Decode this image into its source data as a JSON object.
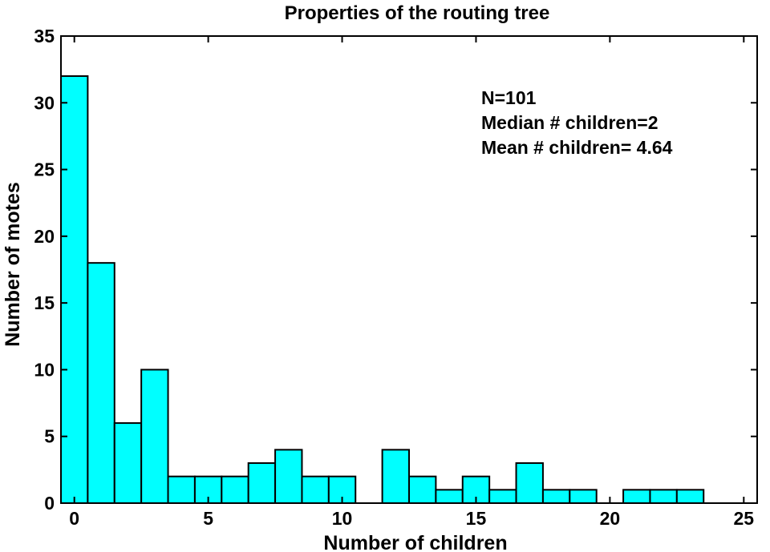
{
  "chart_data": {
    "type": "bar",
    "title": "Properties of the routing tree",
    "xlabel": "Number of children",
    "ylabel": "Number of motes",
    "xlim": [
      -0.5,
      25.5
    ],
    "ylim": [
      0,
      35
    ],
    "xticks": [
      0,
      5,
      10,
      15,
      20,
      25
    ],
    "yticks": [
      0,
      5,
      10,
      15,
      20,
      25,
      30,
      35
    ],
    "grid": false,
    "bar_color": "#00ffff",
    "bar_edge_color": "#000000",
    "x": [
      0,
      1,
      2,
      3,
      4,
      5,
      6,
      7,
      8,
      9,
      10,
      11,
      12,
      13,
      14,
      15,
      16,
      17,
      18,
      19,
      20,
      21,
      22,
      23,
      24,
      25
    ],
    "values": [
      32,
      18,
      6,
      10,
      2,
      2,
      2,
      3,
      4,
      2,
      2,
      0,
      4,
      2,
      1,
      2,
      1,
      3,
      1,
      1,
      0,
      1,
      1,
      1,
      0,
      0
    ],
    "annotations": [
      "N=101",
      "Median # children=2",
      "Mean # children= 4.64"
    ]
  }
}
